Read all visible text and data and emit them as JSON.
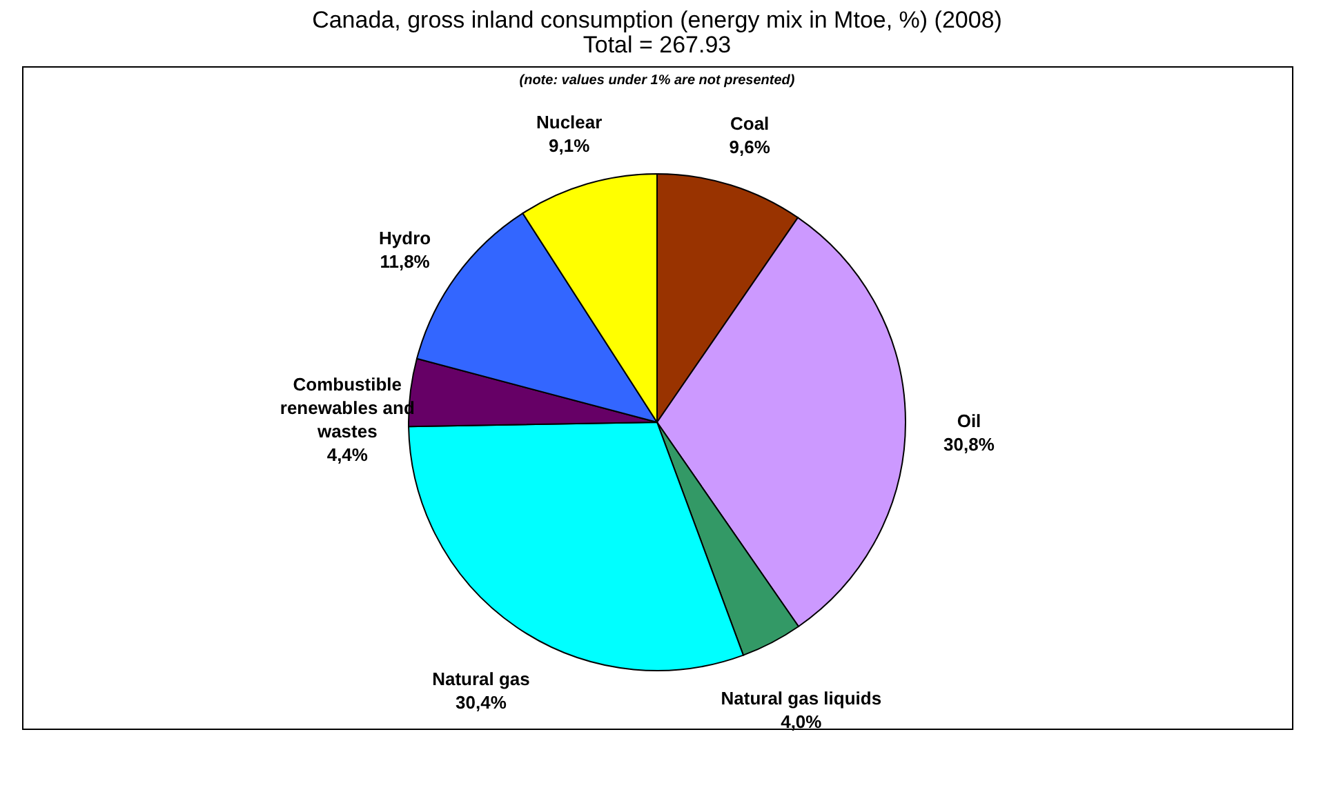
{
  "chart_data": {
    "type": "pie",
    "title": "Canada, gross inland consumption (energy mix in Mtoe, %) (2008)",
    "subtitle": "Total = 267.93",
    "annotations": [
      "(note: values under 1% are not presented)"
    ],
    "categories": [
      "Coal",
      "Oil",
      "Natural gas liquids",
      "Natural gas",
      "Combustible renewables and wastes",
      "Hydro",
      "Nuclear"
    ],
    "values": [
      9.6,
      30.8,
      4.0,
      30.4,
      4.4,
      11.8,
      9.1
    ],
    "value_labels": [
      "9,6%",
      "30,8%",
      "4,0%",
      "30,4%",
      "4,4%",
      "11,8%",
      "9,1%"
    ],
    "colors": [
      "#993300",
      "#cc99ff",
      "#339966",
      "#00ffff",
      "#660066",
      "#3366ff",
      "#ffff00"
    ]
  }
}
